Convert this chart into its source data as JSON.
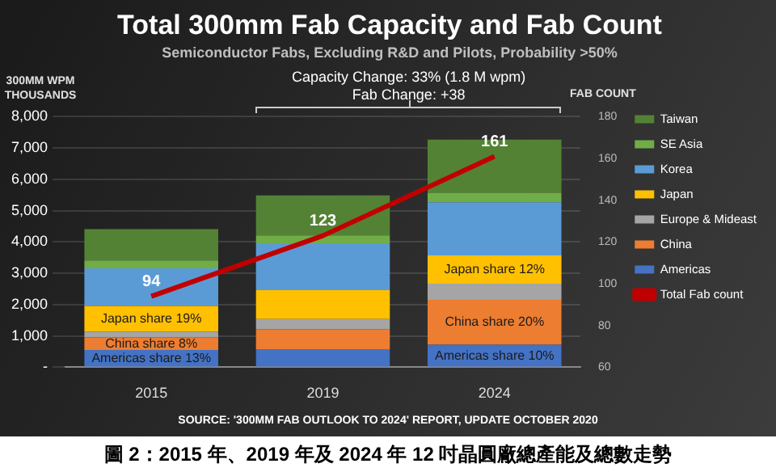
{
  "chart_data": {
    "type": "bar",
    "title": "Total 300mm Fab Capacity and Fab Count",
    "subtitle": "Semiconductor Fabs, Excluding R&D and Pilots, Probability >50%",
    "ylabel": "300MM WPM THOUSANDS",
    "y2label": "FAB COUNT",
    "categories": [
      "2015",
      "2019",
      "2024"
    ],
    "stacked": true,
    "series": [
      {
        "name": "Americas",
        "color": "#4472c4",
        "values": [
          550,
          580,
          720
        ]
      },
      {
        "name": "China",
        "color": "#ed7d31",
        "values": [
          400,
          630,
          1430
        ]
      },
      {
        "name": "Europe & Mideast",
        "color": "#a5a5a5",
        "values": [
          180,
          330,
          520
        ]
      },
      {
        "name": "Japan",
        "color": "#ffc000",
        "values": [
          830,
          920,
          900
        ]
      },
      {
        "name": "Korea",
        "color": "#5b9bd5",
        "values": [
          1200,
          1500,
          1700
        ]
      },
      {
        "name": "SE Asia",
        "color": "#70ad47",
        "values": [
          250,
          250,
          300
        ]
      },
      {
        "name": "Taiwan",
        "color": "#548235",
        "values": [
          1000,
          1280,
          1700
        ]
      },
      {
        "name": "Total Fab count",
        "type": "line",
        "axis": "y2",
        "color": "#c00000",
        "values": [
          94,
          123,
          161
        ],
        "value_labels": [
          "94",
          "123",
          "161"
        ]
      }
    ],
    "ylim": [
      0,
      8000
    ],
    "yticks": [
      {
        "value": 0,
        "label": "-"
      },
      {
        "value": 1000,
        "label": "1,000"
      },
      {
        "value": 2000,
        "label": "2,000"
      },
      {
        "value": 3000,
        "label": "3,000"
      },
      {
        "value": 4000,
        "label": "4,000"
      },
      {
        "value": 5000,
        "label": "5,000"
      },
      {
        "value": 6000,
        "label": "6,000"
      },
      {
        "value": 7000,
        "label": "7,000"
      },
      {
        "value": 8000,
        "label": "8,000"
      }
    ],
    "y2lim": [
      60,
      180
    ],
    "y2ticks": [
      60,
      80,
      100,
      120,
      140,
      160,
      180
    ],
    "grid": "y",
    "legend": "right",
    "marker": "none",
    "annotations": [
      "Capacity Change: 33% (1.8 M wpm)",
      "Fab Change: +38",
      "SOURCE: '300MM FAB OUTLOOK TO 2024' REPORT, UPDATE OCTOBER 2020",
      "圖 2：2015 年、2019 年及 2024 年 12 吋晶圓廠總產能及總數走勢",
      "Japan share 19%",
      "China share 8%",
      "Americas share 13%",
      "Japan share 12%",
      "China share 20%",
      "Americas share 10%"
    ]
  }
}
